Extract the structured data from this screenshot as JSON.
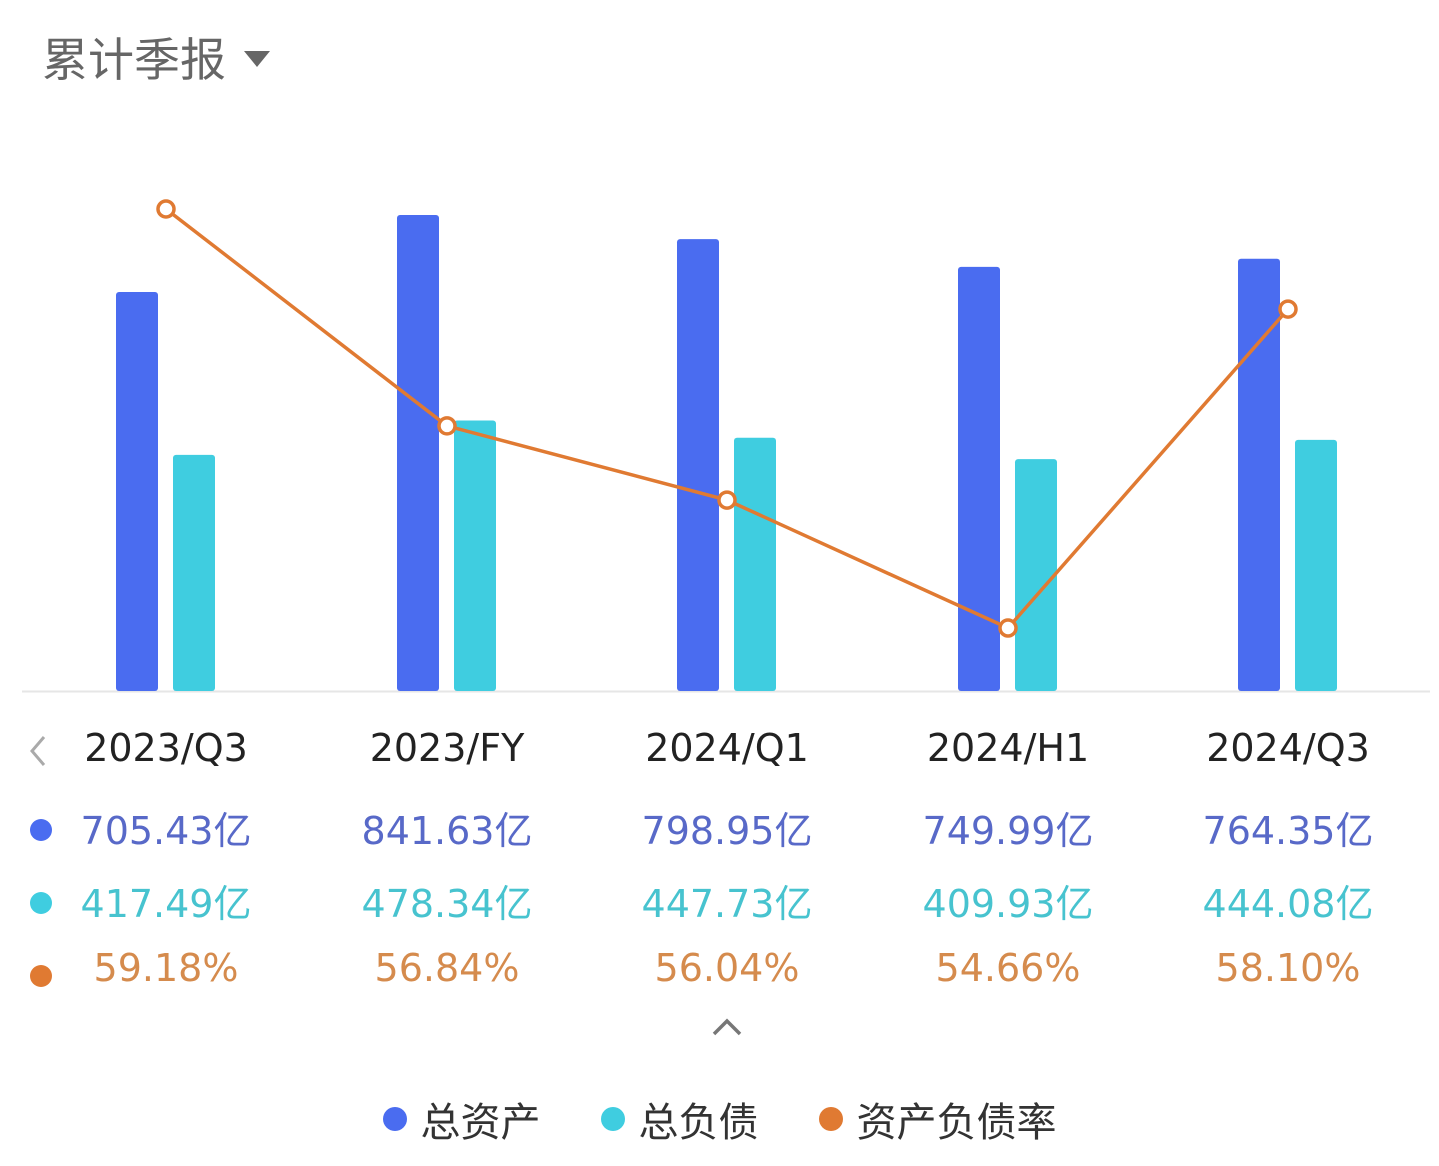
{
  "header": {
    "title": "累计季报",
    "dropdown_icon": "caret-down-icon"
  },
  "colors": {
    "assets": "#4a6cf0",
    "liabilities": "#3fcde0",
    "ratio": "#e07a32",
    "axis": "#e6e6e6"
  },
  "nav": {
    "prev_icon": "chevron-left-icon",
    "collapse_icon": "chevron-up-icon"
  },
  "chart_data": {
    "type": "bar",
    "title": "累计季报",
    "categories": [
      "2023/Q3",
      "2023/FY",
      "2024/Q1",
      "2024/H1",
      "2024/Q3"
    ],
    "series": [
      {
        "name": "总资产",
        "type": "bar",
        "unit": "亿",
        "values": [
          705.43,
          841.63,
          798.95,
          749.99,
          764.35
        ],
        "labels": [
          "705.43亿",
          "841.63亿",
          "798.95亿",
          "749.99亿",
          "764.35亿"
        ]
      },
      {
        "name": "总负债",
        "type": "bar",
        "unit": "亿",
        "values": [
          417.49,
          478.34,
          447.73,
          409.93,
          444.08
        ],
        "labels": [
          "417.49亿",
          "478.34亿",
          "447.73亿",
          "409.93亿",
          "444.08亿"
        ]
      },
      {
        "name": "资产负债率",
        "type": "line",
        "unit": "%",
        "values": [
          59.18,
          56.84,
          56.04,
          54.66,
          58.1
        ],
        "labels": [
          "59.18%",
          "56.84%",
          "56.04%",
          "54.66%",
          "58.10%"
        ]
      }
    ],
    "bar_axis_range": [
      0,
      841.63
    ],
    "line_axis_range": [
      54.66,
      59.18
    ],
    "grid": false,
    "legend": "bottom-center"
  },
  "legend": [
    {
      "label": "总资产"
    },
    {
      "label": "总负债"
    },
    {
      "label": "资产负债率"
    }
  ]
}
